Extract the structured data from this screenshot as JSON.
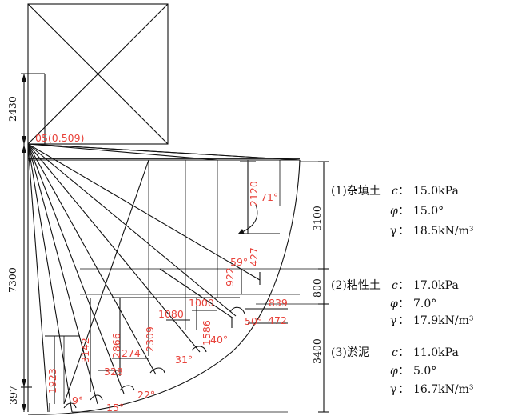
{
  "center_label": "05(0.509)",
  "dims": {
    "top": "2430",
    "mid": "7300",
    "bottom": "397"
  },
  "right_dims": {
    "layer1": "3100",
    "layer2": "800",
    "layer3": "3400"
  },
  "vertical_labels": {
    "d2120": "2120",
    "d922": "922",
    "d1586": "1586",
    "d2309": "2309",
    "d2866": "2866",
    "d3142": "3142",
    "d1923": "1923"
  },
  "horizontal_labels": {
    "h1000": "1000",
    "h1080": "1080",
    "h839": "839",
    "h472": "472",
    "h274": "274",
    "h328": "328",
    "h427": "427"
  },
  "angles": {
    "a71": "71°",
    "a59": "59°",
    "a50": "50°",
    "a40": "40°",
    "a31": "31°",
    "a22": "22°",
    "a15": "15°",
    "a9": "9°"
  },
  "layers": [
    {
      "name": "(1)杂填土",
      "c": "15.0kPa",
      "phi": "15.0°",
      "gamma": "18.5kN/m³"
    },
    {
      "name": "(2)粘性土",
      "c": "17.0kPa",
      "phi": "7.0°",
      "gamma": "17.9kN/m³"
    },
    {
      "name": "(3)淤泥",
      "c": "11.0kPa",
      "phi": "5.0°",
      "gamma": "16.7kN/m³"
    }
  ],
  "symbols": {
    "c": "c",
    "phi": "φ",
    "gamma": "γ",
    "colon": "："
  }
}
